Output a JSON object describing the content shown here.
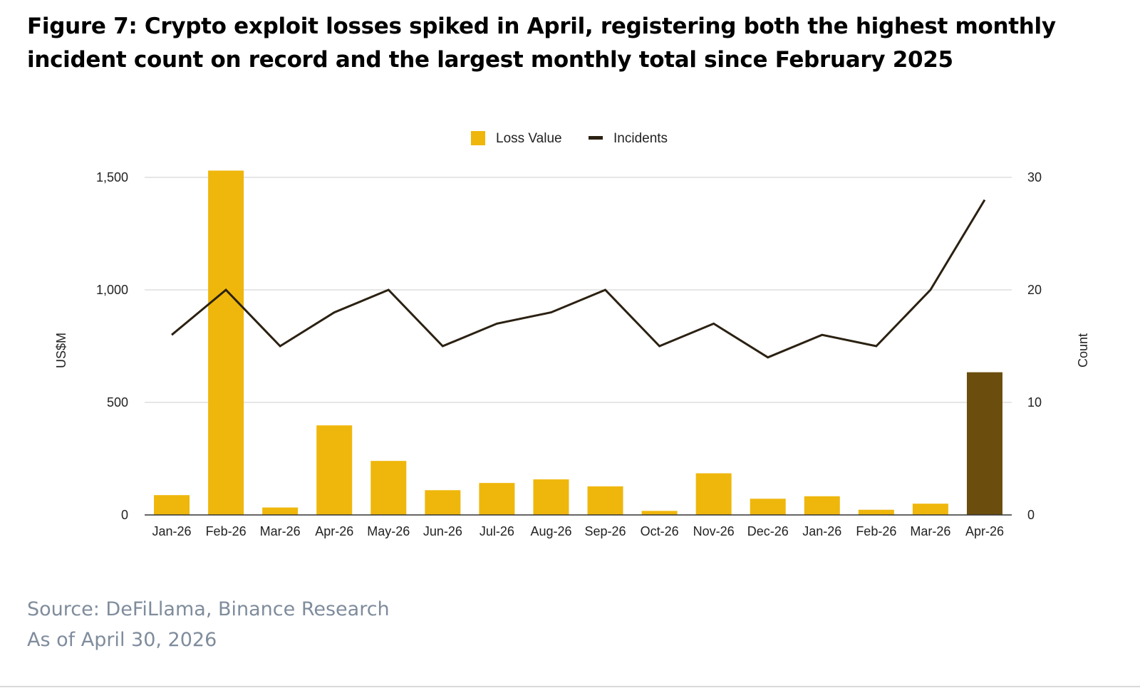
{
  "title": "Figure 7: Crypto exploit losses spiked in April, registering both the highest monthly incident count on record and the largest monthly total since February 2025",
  "source": {
    "line1": "Source: DeFiLlama, Binance Research",
    "line2": "As of April 30, 2026"
  },
  "colors": {
    "bar": "#efb70c",
    "bar_highlight": "#6b4e0e",
    "line": "#2b2112",
    "grid": "#cccccc",
    "source_text": "#7f8c9c"
  },
  "chart_data": {
    "type": "bar",
    "categories": [
      "Jan-26",
      "Feb-26",
      "Mar-26",
      "Apr-26",
      "May-26",
      "Jun-26",
      "Jul-26",
      "Aug-26",
      "Sep-26",
      "Oct-26",
      "Nov-26",
      "Dec-26",
      "Jan-26",
      "Feb-26",
      "Mar-26",
      "Apr-26"
    ],
    "series": [
      {
        "name": "Loss Value",
        "type": "bar",
        "axis": "left",
        "values": [
          88,
          1530,
          33,
          398,
          240,
          110,
          142,
          158,
          127,
          18,
          185,
          72,
          83,
          23,
          50,
          634
        ],
        "highlight_index": 15
      },
      {
        "name": "Incidents",
        "type": "line",
        "axis": "right",
        "values": [
          16,
          20,
          15,
          18,
          20,
          15,
          17,
          18,
          20,
          15,
          17,
          14,
          16,
          15,
          20,
          28
        ]
      }
    ],
    "ylabel": "US$M",
    "y2label": "Count",
    "ylim": [
      0,
      1500
    ],
    "y2lim": [
      0,
      30
    ],
    "yticks": [
      "0",
      "500",
      "1,000",
      "1,500"
    ],
    "y2ticks": [
      "0",
      "10",
      "20",
      "30"
    ],
    "grid": true,
    "legend": "top-center"
  }
}
